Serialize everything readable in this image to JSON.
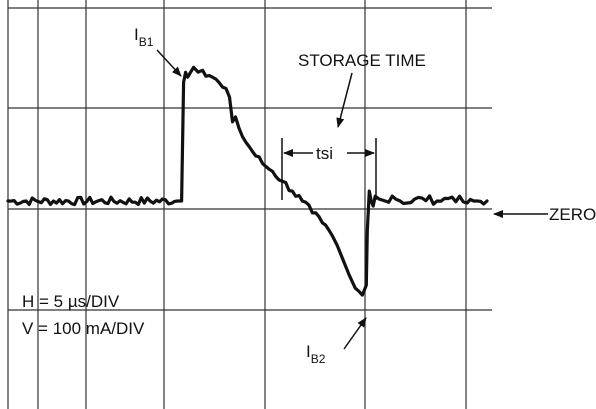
{
  "chart_data": {
    "type": "line",
    "title": "",
    "xlabel": "",
    "ylabel": "",
    "x_unit": "µs",
    "y_unit": "mA",
    "xlim": [
      0,
      48.5
    ],
    "ylim": [
      -210,
      203
    ],
    "grid": true,
    "legend": "none",
    "series": [
      {
        "name": "",
        "x": [
          0,
          17.0,
          17.4,
          17.6,
          17.8,
          18.0,
          18.6,
          19.5,
          20.5,
          21.5,
          22.2,
          22.5,
          22.8,
          23.5,
          24.5,
          25.5,
          26.5,
          27.5,
          28.5,
          29.5,
          30.5,
          31.5,
          32.5,
          33.0,
          33.6,
          34.2,
          34.8,
          35.5,
          35.9,
          36.0,
          36.2,
          36.4,
          36.6,
          36.8,
          37.2,
          37.8,
          38.5,
          40.0,
          41.5,
          43.0,
          44.5,
          46.0,
          47.0,
          48.0
        ],
        "y": [
          0,
          0,
          0,
          120,
          130,
          125,
          135,
          132,
          125,
          115,
          105,
          80,
          85,
          65,
          50,
          38,
          30,
          20,
          10,
          0,
          -12,
          -22,
          -35,
          -45,
          -60,
          -75,
          -88,
          -95,
          -85,
          -30,
          10,
          0,
          -5,
          5,
          2,
          0,
          5,
          -2,
          3,
          0,
          4,
          -2,
          0,
          0
        ]
      }
    ],
    "annotations": {
      "ib1": {
        "main": "I",
        "sub": "B1"
      },
      "ib2": {
        "main": "I",
        "sub": "B2"
      },
      "storage_time": "STORAGE TIME",
      "tsi": "tsi",
      "zero": "ZERO",
      "h_scale": "H = 5 µs/DIV",
      "v_scale": "V = 100 mA/DIV"
    }
  }
}
